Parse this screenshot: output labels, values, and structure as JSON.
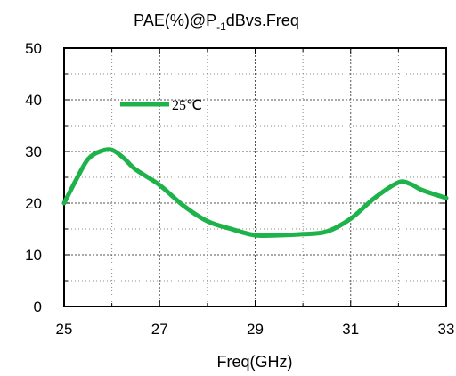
{
  "chart_data": {
    "type": "line",
    "title": {
      "prefix": "PAE(%)@P",
      "subscript": "-1",
      "suffix": "dBvs.Freq"
    },
    "xlabel": "Freq(GHz)",
    "ylabel": "",
    "xlim": [
      25,
      33
    ],
    "ylim": [
      0,
      50
    ],
    "x_ticks": [
      25,
      27,
      29,
      31,
      33
    ],
    "y_ticks": [
      0,
      10,
      20,
      30,
      40,
      50
    ],
    "grid": true,
    "legend_position": "top-left",
    "series": [
      {
        "name": "25℃",
        "color": "#1db34a",
        "x": [
          25.0,
          25.25,
          25.5,
          25.75,
          26.0,
          26.25,
          26.5,
          27.0,
          27.5,
          28.0,
          28.5,
          29.0,
          29.5,
          30.0,
          30.5,
          31.0,
          31.5,
          32.0,
          32.25,
          32.5,
          33.0
        ],
        "y": [
          20.0,
          24.5,
          28.5,
          30.0,
          30.3,
          28.7,
          26.5,
          23.5,
          19.5,
          16.5,
          15.0,
          13.8,
          13.8,
          14.0,
          14.5,
          17.0,
          21.0,
          24.0,
          23.7,
          22.5,
          21.0
        ]
      }
    ]
  }
}
